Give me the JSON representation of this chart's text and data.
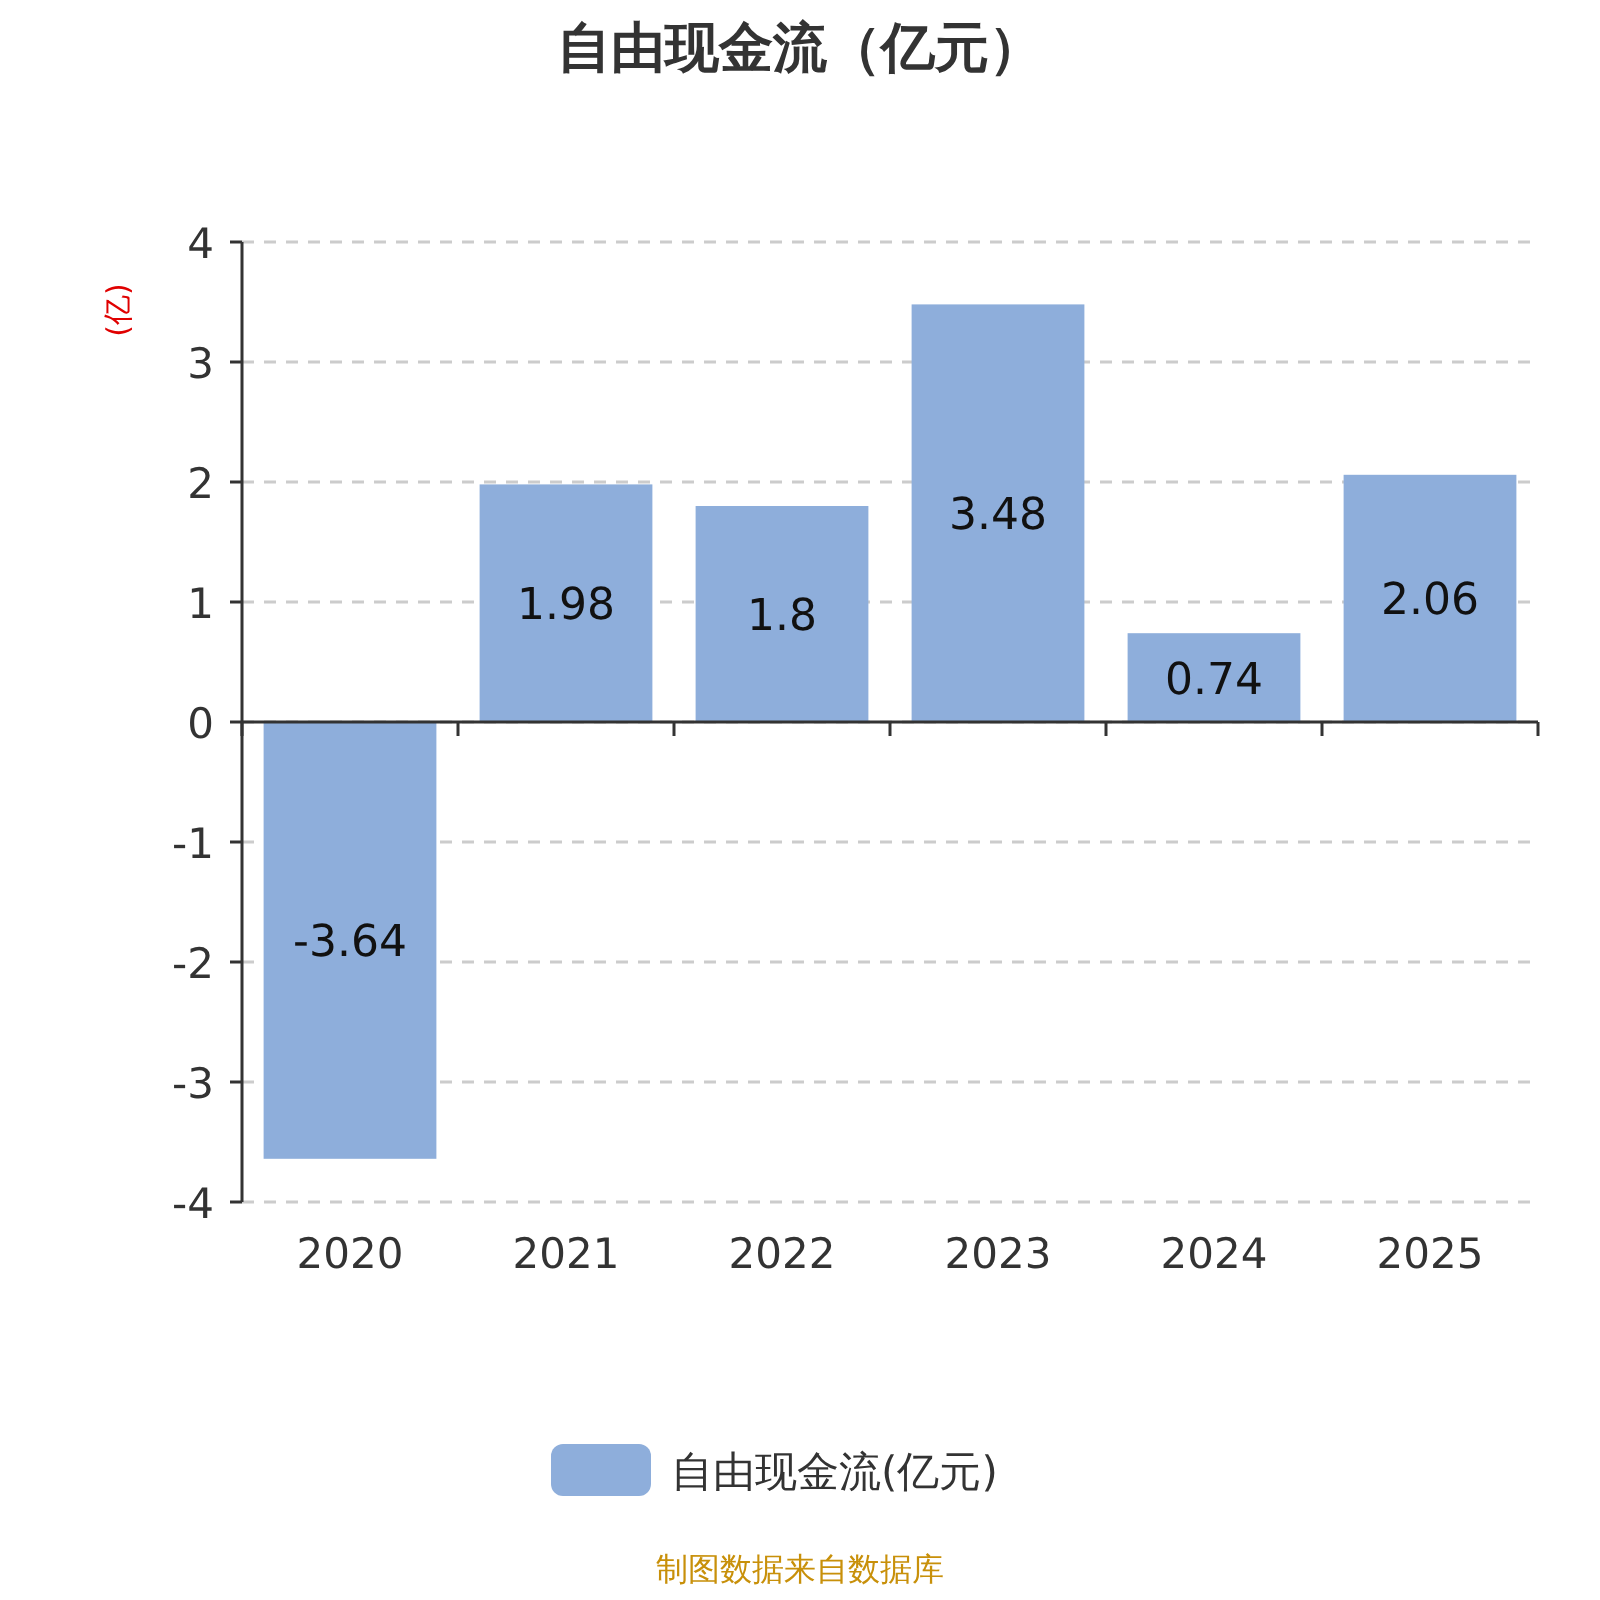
{
  "chart_data": {
    "type": "bar",
    "title": "自由现金流（亿元）",
    "ylabel": "(亿)",
    "categories": [
      "2020",
      "2021",
      "2022",
      "2023",
      "2024",
      "2025"
    ],
    "series": [
      {
        "name": "自由现金流(亿元)",
        "color": "#8eaedb",
        "values": [
          -3.64,
          1.98,
          1.8,
          3.48,
          0.74,
          2.06
        ]
      }
    ],
    "ylim": [
      -4,
      4
    ],
    "yticks": [
      -4,
      -3,
      -2,
      -1,
      0,
      1,
      2,
      3,
      4
    ],
    "grid": "y",
    "legend": "bottom",
    "data_labels": true,
    "annotations": [
      "制图数据来自数据库"
    ]
  }
}
